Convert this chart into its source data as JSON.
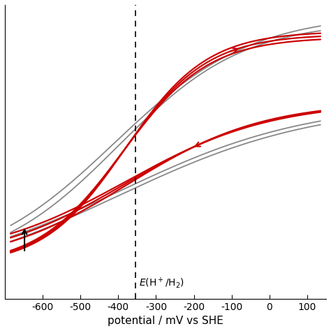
{
  "xlim": [
    -700,
    150
  ],
  "ylim_data": [
    -1.0,
    1.0
  ],
  "xlabel": "potential / mV vs SHE",
  "dashed_line_x": -355,
  "dashed_label": "$E$(H$^+$/H$_2$)",
  "background_color": "#ffffff",
  "gray_color": "#888888",
  "red_color": "#cc0000",
  "xticks": [
    -600,
    -500,
    -400,
    -300,
    -200,
    -100,
    0,
    100
  ],
  "xticklabels": [
    "-600",
    "-500",
    "-400",
    "-300",
    "-200",
    "-100",
    "0",
    "100"
  ]
}
